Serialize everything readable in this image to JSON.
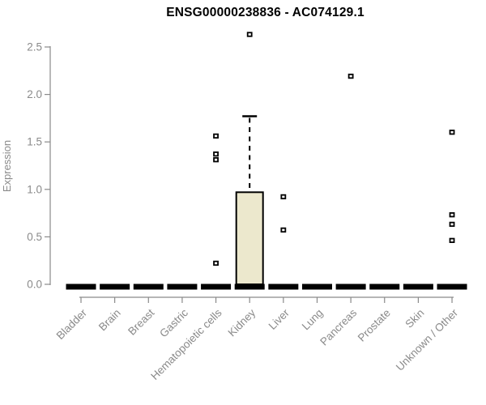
{
  "chart_data": {
    "type": "box",
    "title": "ENSG00000238836 - AC074129.1",
    "ylabel": "Expression",
    "xlabel": "",
    "ylim": [
      0,
      2.5
    ],
    "ytick_labels": [
      "0.0",
      "0.5",
      "1.0",
      "1.5",
      "2.0",
      "2.5"
    ],
    "grid": false,
    "legend": "none",
    "categories": [
      "Bladder",
      "Brain",
      "Breast",
      "Gastric",
      "Hematopoietic cells",
      "Kidney",
      "Liver",
      "Lung",
      "Pancreas",
      "Prostate",
      "Skin",
      "Unknown / Other"
    ],
    "boxes": [
      {
        "category": "Bladder",
        "q1": 0,
        "median": 0,
        "q3": 0,
        "whisker_low": 0,
        "whisker_high": 0,
        "outliers": []
      },
      {
        "category": "Brain",
        "q1": 0,
        "median": 0,
        "q3": 0,
        "whisker_low": 0,
        "whisker_high": 0,
        "outliers": []
      },
      {
        "category": "Breast",
        "q1": 0,
        "median": 0,
        "q3": 0,
        "whisker_low": 0,
        "whisker_high": 0,
        "outliers": []
      },
      {
        "category": "Gastric",
        "q1": 0,
        "median": 0,
        "q3": 0,
        "whisker_low": 0,
        "whisker_high": 0,
        "outliers": []
      },
      {
        "category": "Hematopoietic cells",
        "q1": 0,
        "median": 0,
        "q3": 0,
        "whisker_low": 0,
        "whisker_high": 0,
        "outliers": [
          0.22,
          1.31,
          1.37,
          1.56
        ]
      },
      {
        "category": "Kidney",
        "q1": 0,
        "median": 0,
        "q3": 0.97,
        "whisker_low": 0,
        "whisker_high": 1.77,
        "outliers": [
          2.63
        ]
      },
      {
        "category": "Liver",
        "q1": 0,
        "median": 0,
        "q3": 0,
        "whisker_low": 0,
        "whisker_high": 0,
        "outliers": [
          0.57,
          0.92
        ]
      },
      {
        "category": "Lung",
        "q1": 0,
        "median": 0,
        "q3": 0,
        "whisker_low": 0,
        "whisker_high": 0,
        "outliers": []
      },
      {
        "category": "Pancreas",
        "q1": 0,
        "median": 0,
        "q3": 0,
        "whisker_low": 0,
        "whisker_high": 0,
        "outliers": [
          2.19
        ]
      },
      {
        "category": "Prostate",
        "q1": 0,
        "median": 0,
        "q3": 0,
        "whisker_low": 0,
        "whisker_high": 0,
        "outliers": []
      },
      {
        "category": "Skin",
        "q1": 0,
        "median": 0,
        "q3": 0,
        "whisker_low": 0,
        "whisker_high": 0,
        "outliers": []
      },
      {
        "category": "Unknown / Other",
        "q1": 0,
        "median": 0,
        "q3": 0,
        "whisker_low": 0,
        "whisker_high": 0,
        "outliers": [
          0.46,
          0.63,
          0.73,
          1.6
        ]
      }
    ],
    "colors": {
      "box_fill": "#ece8cd",
      "box_stroke": "#000000",
      "median": "#000000",
      "outlier_stroke": "#000000",
      "outlier_fill": "#ffffff",
      "axis": "#8a8a8a",
      "tick_label": "#8a8a8a",
      "title": "#000000",
      "background": "#ffffff"
    }
  }
}
